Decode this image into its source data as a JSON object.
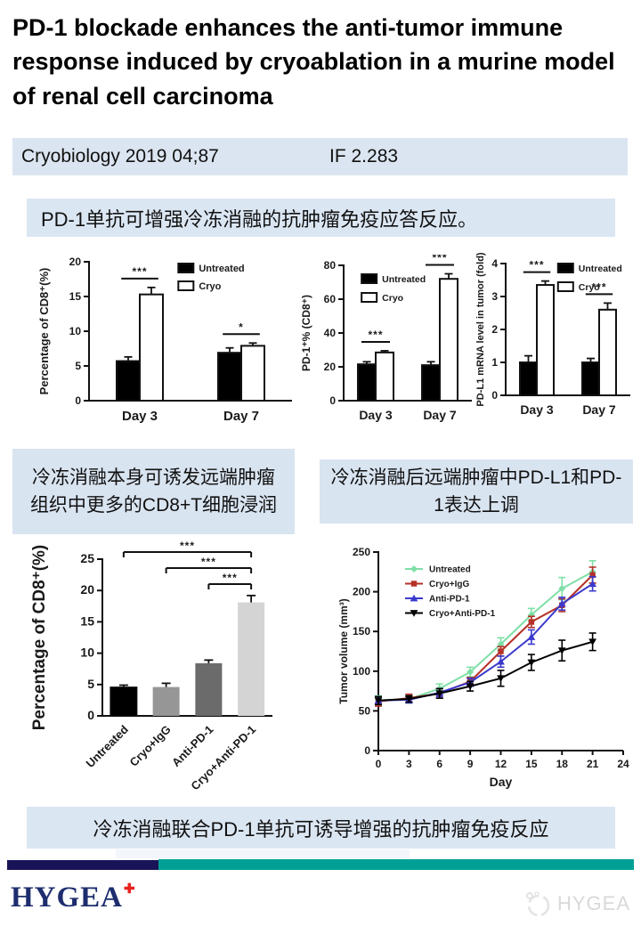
{
  "header": {
    "title": " PD-1 blockade enhances the anti-tumor immune response induced by cryoablation in a murine model of renal cell carcinoma"
  },
  "journal_bar": {
    "citation": "Cryobiology 2019 04;87",
    "impact_factor": "IF 2.283"
  },
  "summary_banner": {
    "text": "PD-1单抗可增强冷冻消融的抗肿瘤免疫应答反应。"
  },
  "captions": {
    "cd8": "冷冻消融本身可诱发远端肿瘤组织中更多的CD8+T细胞浸润",
    "pdl1": "冷冻消融后远端肿瘤中PD-L1和PD-1表达上调",
    "bottom": "冷冻消融联合PD-1单抗可诱导增强的抗肿瘤免疫反应"
  },
  "footer": {
    "logo_text": "HYGEA",
    "logo_mark": "✚",
    "watermark_text": "HYGEA"
  },
  "colors": {
    "panel_blue": "#dbe5f1",
    "footer_navy": "#191358",
    "footer_teal": "#00a096",
    "logo_navy": "#1d2d6e",
    "logo_mark_red": "#e8221f",
    "watermark_gray": "#d9d9d9"
  },
  "chart_data": [
    {
      "id": "cd8-t-cell-infiltration",
      "type": "bar",
      "grouped": true,
      "categories": [
        "Day 3",
        "Day 7"
      ],
      "series": [
        {
          "name": "Untreated",
          "style": "solid",
          "color": "#000000",
          "values": [
            5.7,
            6.9
          ],
          "errors": [
            0.6,
            0.7
          ]
        },
        {
          "name": "Cryo",
          "style": "open",
          "color": "#000000",
          "values": [
            15.3,
            7.9
          ],
          "errors": [
            1.0,
            0.4
          ]
        }
      ],
      "ylabel": "Percentage of CD8⁺(%)",
      "ylim": [
        0,
        20
      ],
      "yticks": [
        0,
        5,
        10,
        15,
        20
      ],
      "significance": [
        "***",
        "*"
      ],
      "legend_position": "top-right"
    },
    {
      "id": "pd1-percent-of-cd8",
      "type": "bar",
      "grouped": true,
      "categories": [
        "Day 3",
        "Day 7"
      ],
      "series": [
        {
          "name": "Untreated",
          "style": "solid",
          "color": "#000000",
          "values": [
            21.5,
            21.0
          ],
          "errors": [
            1.5,
            2.0
          ]
        },
        {
          "name": "Cryo",
          "style": "open",
          "color": "#000000",
          "values": [
            28.5,
            72.0
          ],
          "errors": [
            1.0,
            3.0
          ]
        }
      ],
      "ylabel": "PD-1⁺% (CD8⁺)",
      "ylim": [
        0,
        80
      ],
      "yticks": [
        0,
        20,
        40,
        60,
        80
      ],
      "significance": [
        "***",
        "***"
      ],
      "legend_position": "top-left"
    },
    {
      "id": "pdl1-mrna-level",
      "type": "bar",
      "grouped": true,
      "categories": [
        "Day 3",
        "Day 7"
      ],
      "series": [
        {
          "name": "Untreated",
          "style": "solid",
          "color": "#000000",
          "values": [
            1.0,
            1.0
          ],
          "errors": [
            0.2,
            0.12
          ]
        },
        {
          "name": "Cryo",
          "style": "open",
          "color": "#000000",
          "values": [
            3.35,
            2.6
          ],
          "errors": [
            0.12,
            0.2
          ]
        }
      ],
      "ylabel": "PD-L1 mRNA level in tumor (fold)",
      "ylim": [
        0,
        4
      ],
      "yticks": [
        0,
        1,
        2,
        3,
        4
      ],
      "significance": [
        "***",
        "***"
      ],
      "legend_position": "top-right"
    },
    {
      "id": "cd8-combination-therapy",
      "type": "bar",
      "grouped": false,
      "categories": [
        "Untreated",
        "Cryo+IgG",
        "Anti-PD-1",
        "Cryo+Anti-PD-1"
      ],
      "values": [
        4.6,
        4.6,
        8.4,
        18.1
      ],
      "errors": [
        0.3,
        0.6,
        0.5,
        1.1
      ],
      "bar_colors": [
        "#000000",
        "#969696",
        "#6b6b6b",
        "#d4d4d4"
      ],
      "ylabel": "Percentage of CD8⁺(%)",
      "ylim": [
        0,
        25
      ],
      "yticks": [
        0,
        5,
        10,
        15,
        20,
        25
      ],
      "significance_brackets": [
        {
          "from": 0,
          "to": 3,
          "label": "***"
        },
        {
          "from": 1,
          "to": 3,
          "label": "***"
        },
        {
          "from": 2,
          "to": 3,
          "label": "***"
        }
      ]
    },
    {
      "id": "tumor-volume-growth",
      "type": "line",
      "x": [
        0,
        3,
        6,
        9,
        12,
        15,
        18,
        21
      ],
      "series": [
        {
          "name": "Untreated",
          "color": "#7edfa6",
          "values": [
            63,
            65,
            78,
            99,
            134,
            171,
            204,
            225
          ],
          "errors": [
            6,
            5,
            6,
            6,
            8,
            8,
            14,
            14
          ]
        },
        {
          "name": "Cryo+IgG",
          "color": "#b53127",
          "values": [
            62,
            66,
            72,
            87,
            125,
            162,
            183,
            221
          ],
          "errors": [
            6,
            5,
            6,
            5,
            6,
            7,
            8,
            10
          ]
        },
        {
          "name": "Anti-PD-1",
          "color": "#3a3acc",
          "values": [
            63,
            64,
            73,
            86,
            112,
            143,
            185,
            210
          ],
          "errors": [
            5,
            4,
            5,
            5,
            7,
            9,
            8,
            9
          ]
        },
        {
          "name": "Cryo+Anti-PD-1",
          "color": "#000000",
          "values": [
            63,
            65,
            72,
            81,
            91,
            111,
            126,
            137
          ],
          "errors": [
            5,
            4,
            6,
            6,
            10,
            10,
            13,
            11
          ]
        }
      ],
      "xlabel": "Day",
      "ylabel": "Tumor volume (mm³)",
      "xlim": [
        0,
        24
      ],
      "xticks": [
        0,
        3,
        6,
        9,
        12,
        15,
        18,
        21,
        24
      ],
      "ylim": [
        0,
        250
      ],
      "yticks": [
        0,
        50,
        100,
        150,
        200,
        250
      ],
      "legend_position": "top-left"
    }
  ]
}
